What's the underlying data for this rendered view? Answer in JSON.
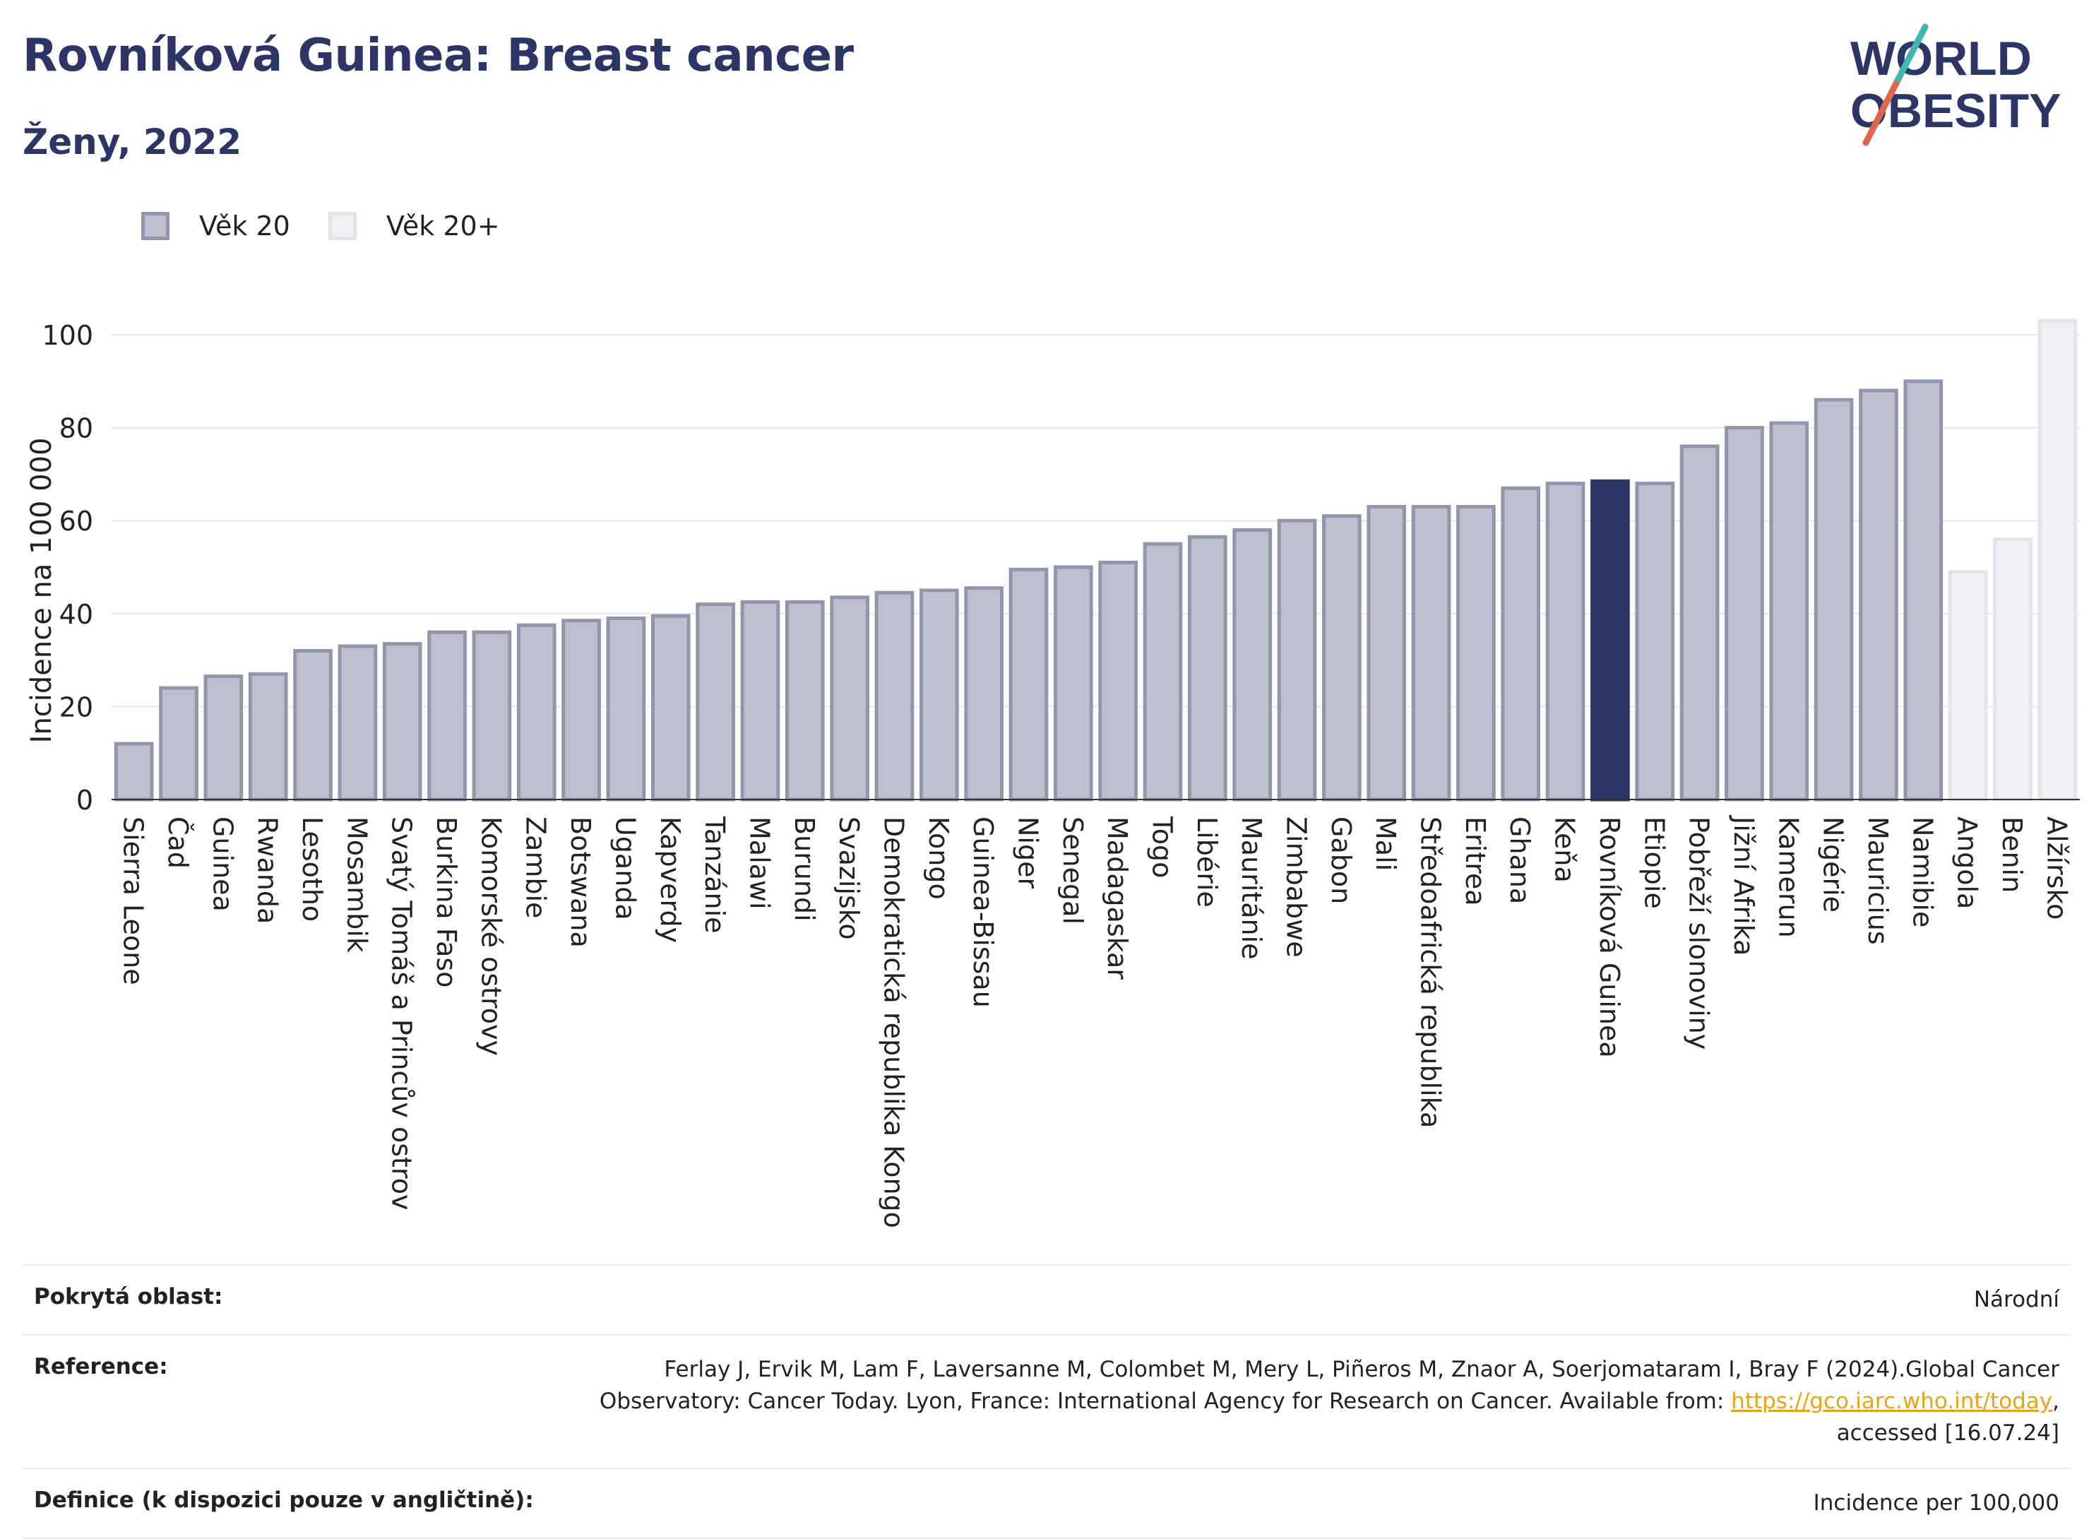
{
  "title": "Rovníková Guinea: Breast cancer",
  "subtitle": "Ženy, 2022",
  "logo": {
    "line1": "WORLD",
    "line2": "OBESITY"
  },
  "legend": [
    {
      "label": "Věk 20",
      "color": "#bcc0cd"
    },
    {
      "label": "Věk 20+",
      "color": "#eff0f3"
    }
  ],
  "colors": {
    "default_bar": "#bcc0cd",
    "highlight_bar": "#2b3566",
    "age20plus_bar": "#eff0f3",
    "title": "#2b3566"
  },
  "chart_data": {
    "type": "bar",
    "ylabel": "Incidence na 100 000",
    "xlabel": "",
    "ylim": [
      0,
      110
    ],
    "yticks": [
      0,
      20,
      40,
      60,
      80,
      100
    ],
    "grid": true,
    "legend_position": "top-left",
    "highlight": "Rovníková Guinea",
    "categories": [
      "Sierra Leone",
      "Čad",
      "Guinea",
      "Rwanda",
      "Lesotho",
      "Mosambik",
      "Svatý Tomáš a Princův ostrov",
      "Burkina Faso",
      "Komorské ostrovy",
      "Zambie",
      "Botswana",
      "Uganda",
      "Kapverdy",
      "Tanzánie",
      "Malawi",
      "Burundi",
      "Svazijsko",
      "Demokratická republika Kongo",
      "Kongo",
      "Guinea-Bissau",
      "Niger",
      "Senegal",
      "Madagaskar",
      "Togo",
      "Libérie",
      "Mauritánie",
      "Zimbabwe",
      "Gabon",
      "Mali",
      "Středoafrická republika",
      "Eritrea",
      "Ghana",
      "Keňa",
      "Rovníková Guinea",
      "Etiopie",
      "Pobřeží slonoviny",
      "Jižní Afrika",
      "Kamerun",
      "Nigérie",
      "Mauricius",
      "Namibie",
      "Angola",
      "Benin",
      "Alžírsko"
    ],
    "values": [
      12,
      24,
      26.5,
      27,
      32,
      33,
      33.5,
      36,
      36,
      37.5,
      38.5,
      39,
      39.5,
      42,
      42.5,
      42.5,
      43.5,
      44.5,
      45,
      45.5,
      49.5,
      50,
      51,
      55,
      56.5,
      58,
      60,
      61,
      63,
      63,
      63,
      67,
      68,
      68.5,
      68,
      76,
      80,
      81,
      86,
      88,
      90,
      49,
      56,
      103
    ],
    "series_group": [
      "Věk 20",
      "Věk 20",
      "Věk 20",
      "Věk 20",
      "Věk 20",
      "Věk 20",
      "Věk 20",
      "Věk 20",
      "Věk 20",
      "Věk 20",
      "Věk 20",
      "Věk 20",
      "Věk 20",
      "Věk 20",
      "Věk 20",
      "Věk 20",
      "Věk 20",
      "Věk 20",
      "Věk 20",
      "Věk 20",
      "Věk 20",
      "Věk 20",
      "Věk 20",
      "Věk 20",
      "Věk 20",
      "Věk 20",
      "Věk 20",
      "Věk 20",
      "Věk 20",
      "Věk 20",
      "Věk 20",
      "Věk 20",
      "Věk 20",
      "Věk 20",
      "Věk 20",
      "Věk 20",
      "Věk 20",
      "Věk 20",
      "Věk 20",
      "Věk 20",
      "Věk 20",
      "Věk 20+",
      "Věk 20+",
      "Věk 20+"
    ]
  },
  "footer": {
    "coverage_label": "Pokrytá oblast:",
    "coverage_value": "Národní",
    "reference_label": "Reference:",
    "reference_text": "Ferlay J, Ervik M, Lam F, Laversanne M, Colombet M, Mery L, Piñeros M, Znaor A, Soerjomataram I, Bray F (2024).Global Cancer Observatory: Cancer Today. Lyon, France: International Agency for Research on Cancer. Available from: ",
    "reference_link": "https://gco.iarc.who.int/today",
    "reference_suffix": ", accessed [16.07.24]",
    "definition_label": "Definice (k dispozici pouze v angličtině):",
    "definition_value": "Incidence per 100,000"
  }
}
